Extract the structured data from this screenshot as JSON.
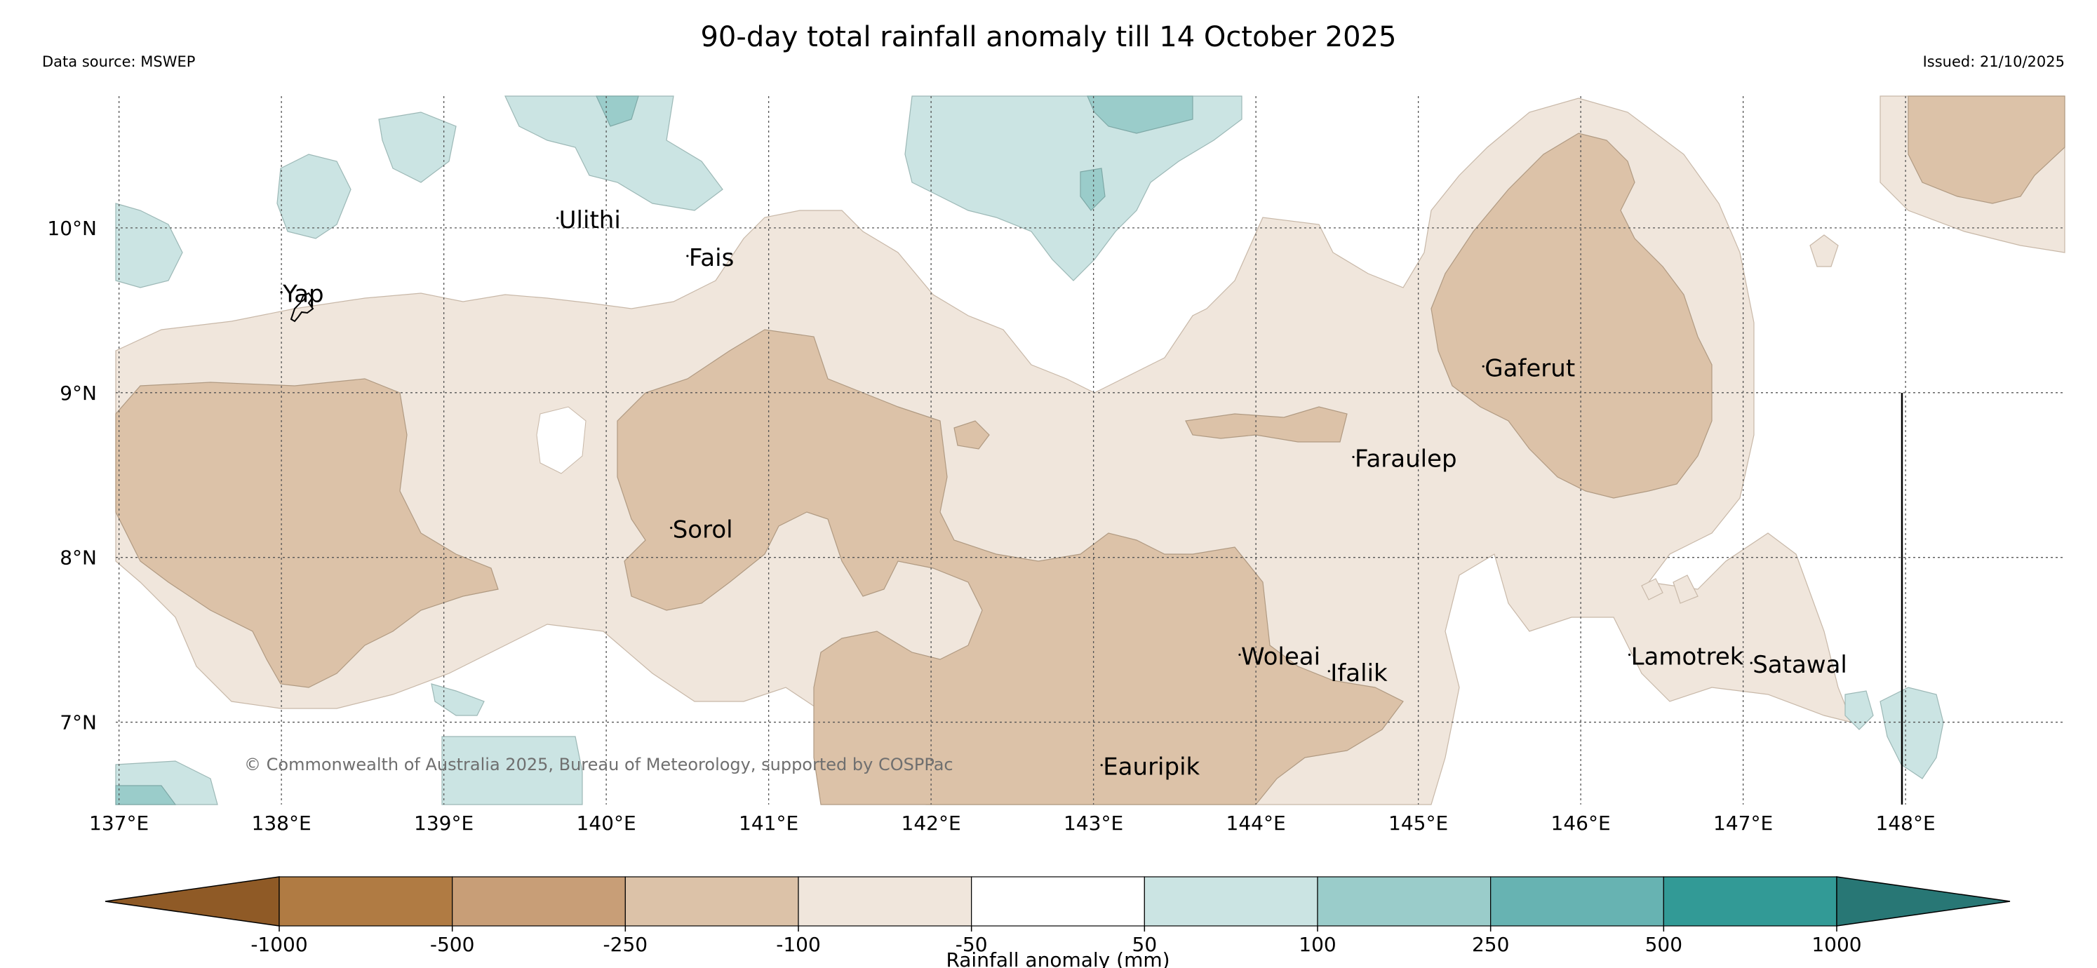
{
  "header": {
    "title": "90-day total rainfall anomaly till 14 October 2025",
    "source": "Data source: MSWEP",
    "issued": "Issued: 21/10/2025"
  },
  "map": {
    "lon_ticks": [
      "137°E",
      "138°E",
      "139°E",
      "140°E",
      "141°E",
      "142°E",
      "143°E",
      "144°E",
      "145°E",
      "146°E",
      "147°E",
      "148°E"
    ],
    "lat_ticks": [
      "10°N",
      "9°N",
      "8°N",
      "7°N"
    ],
    "places": [
      {
        "name": "Yap",
        "lon": 138.0,
        "lat": 9.55
      },
      {
        "name": "Ulithi",
        "lon": 139.7,
        "lat": 10.0
      },
      {
        "name": "Fais",
        "lon": 140.5,
        "lat": 9.77
      },
      {
        "name": "Gaferut",
        "lon": 145.4,
        "lat": 9.1
      },
      {
        "name": "Faraulep",
        "lon": 144.6,
        "lat": 8.55
      },
      {
        "name": "Sorol",
        "lon": 140.4,
        "lat": 8.12
      },
      {
        "name": "Woleai",
        "lon": 143.9,
        "lat": 7.35
      },
      {
        "name": "Ifalik",
        "lon": 144.45,
        "lat": 7.25
      },
      {
        "name": "Lamotrek",
        "lon": 146.3,
        "lat": 7.35
      },
      {
        "name": "Satawal",
        "lon": 147.05,
        "lat": 7.3
      },
      {
        "name": "Eauripik",
        "lon": 143.05,
        "lat": 6.68
      }
    ],
    "copyright": "© Commonwealth of Australia 2025, Bureau of Meteorology, supported by COSPPac"
  },
  "colorbar": {
    "label": "Rainfall anomaly (mm)",
    "ticks": [
      "-1000",
      "-500",
      "-250",
      "-100",
      "-50",
      "50",
      "100",
      "250",
      "500",
      "1000"
    ],
    "colors": [
      "#8f5a26",
      "#b07b43",
      "#c89e77",
      "#dcc2a8",
      "#f0e6dc",
      "#ffffff",
      "#cbe4e3",
      "#9accca",
      "#67b3b2",
      "#329a96",
      "#287775"
    ]
  }
}
